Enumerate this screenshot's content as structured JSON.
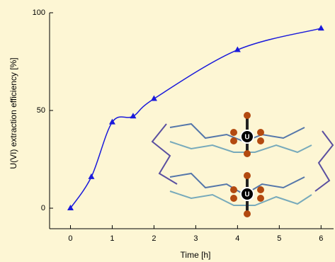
{
  "chart_data": {
    "type": "line",
    "x_label": "Time [h]",
    "y_label": "U(VI) extraction efficiency [%]",
    "x": [
      0,
      0.5,
      1,
      1.5,
      2,
      4,
      6
    ],
    "series": [
      {
        "color": "#1a1adb",
        "values": [
          0,
          16,
          44,
          47,
          56,
          81,
          92
        ]
      }
    ],
    "xlim": [
      -0.5,
      6.3
    ],
    "ylim": [
      -10.5,
      100
    ],
    "xticks": [
      0,
      1,
      2,
      3,
      4,
      5,
      6
    ],
    "yticks": [
      0,
      50,
      100
    ]
  }
}
